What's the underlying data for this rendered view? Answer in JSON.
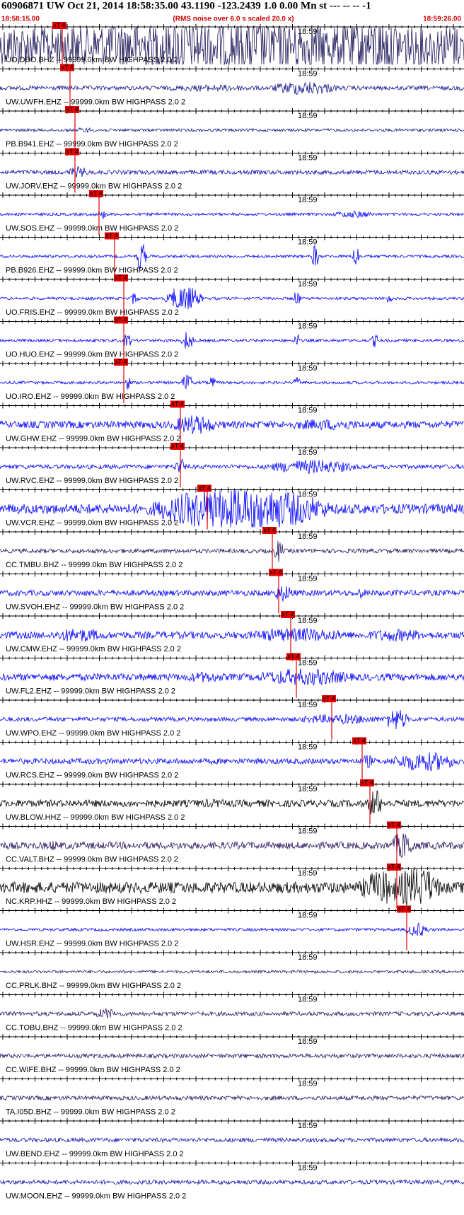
{
  "header": {
    "title": "60906871 UW Oct 21, 2014 18:58:35.00   43.1190 -123.2439  1.0 0.00 Mn st --- -- --  -1",
    "start_time": "18:58:15.00",
    "note": "(RMS noise over 6.0 s scaled 20.0 x)",
    "end_time": "18:59:26.00"
  },
  "traces": [
    {
      "label": "UO.DBO.BHZ --  99999.0km BW  HIGHPASS  2.0  2",
      "time_mark": "18:59",
      "pick": "xT 4",
      "color": "#1c1658"
    },
    {
      "label": "UW.UWFH.EHZ --  99999.0km BW  HIGHPASS  2.0  2",
      "time_mark": "18:59",
      "pick": "xT 4",
      "color": "#14148c"
    },
    {
      "label": "PB.B941.EHZ --  99999.0km BW  HIGHPASS  2.0  2",
      "time_mark": "18:59",
      "pick": "xT 4",
      "color": "#14148c"
    },
    {
      "label": "UW.JORV.EHZ --  99999.0km BW  HIGHPASS  2.0  2",
      "time_mark": "18:59",
      "pick": "xT 4",
      "color": "#1010b0"
    },
    {
      "label": "UW.SOS.EHZ --  99999.0km BW  HIGHPASS  2.0  2",
      "time_mark": "18:59",
      "pick": "xT 4",
      "color": "#0000ff"
    },
    {
      "label": "PB.B926.EHZ --  99999.0km BW  HIGHPASS  2.0  2",
      "time_mark": "18:59",
      "pick": "xT 4",
      "color": "#0000ff"
    },
    {
      "label": "UO.FRIS.EHZ --  99999.0km BW  HIGHPASS  2.0  2",
      "time_mark": "18:59",
      "pick": "xT 4",
      "color": "#0000ff"
    },
    {
      "label": "UO.HUO.EHZ --  99999.0km BW  HIGHPASS  2.0  2",
      "time_mark": "18:59",
      "pick": "xT 4",
      "color": "#0000ff"
    },
    {
      "label": "UO.IRO.EHZ --  99999.0km BW  HIGHPASS  2.0  2",
      "time_mark": "18:59",
      "pick": "xT 4",
      "color": "#0000ff"
    },
    {
      "label": "UW.GHW.EHZ --  99999.0km BW  HIGHPASS  2.0  2",
      "time_mark": "18:59",
      "pick": "xT 4",
      "color": "#0000ff"
    },
    {
      "label": "UW.RVC.EHZ --  99999.0km BW  HIGHPASS  2.0  2",
      "time_mark": "18:59",
      "pick": "xT 4",
      "color": "#0000ff"
    },
    {
      "label": "UW.VCR.EHZ --  99999.0km BW  HIGHPASS  2.0  2",
      "time_mark": "18:59",
      "pick": "xT 4",
      "color": "#0000ff"
    },
    {
      "label": "CC.TMBU.BHZ --  99999.0km BW  HIGHPASS  2.0  2",
      "time_mark": "18:59",
      "pick": "xT 4",
      "color": "#1c1658"
    },
    {
      "label": "UW.SVOH.EHZ --  99999.0km BW  HIGHPASS  2.0  2",
      "time_mark": "18:59",
      "pick": "xT 4",
      "color": "#0000ff"
    },
    {
      "label": "UW.CMW.EHZ --  99999.0km BW  HIGHPASS  2.0  2",
      "time_mark": "18:59",
      "pick": "xT 4",
      "color": "#0000ff"
    },
    {
      "label": "UW.FL2.EHZ --  99999.0km BW  HIGHPASS  2.0  2",
      "time_mark": "18:59",
      "pick": "xT 4",
      "color": "#0000ff"
    },
    {
      "label": "UW.WPO.EHZ --  99999.0km BW  HIGHPASS  2.0  2",
      "time_mark": "18:59",
      "pick": "xT 4",
      "color": "#0000ff"
    },
    {
      "label": "UW.RCS.EHZ --  99999.0km BW  HIGHPASS  2.0  2",
      "time_mark": "18:59",
      "pick": "xT 4",
      "color": "#0000ff"
    },
    {
      "label": "UW.BLOW.HHZ --  99999.0km BW  HIGHPASS  2.0  2",
      "time_mark": "18:59",
      "pick": "xT 4",
      "color": "#000000"
    },
    {
      "label": "CC.VALT.BHZ --  99999.0km BW  HIGHPASS  2.0  2",
      "time_mark": "18:59",
      "pick": "xT 4",
      "color": "#2a1660"
    },
    {
      "label": "NC.KRP.HHZ --  99999.0km BW  HIGHPASS  2.0  2",
      "time_mark": "18:59",
      "pick": "xT 4",
      "color": "#000000"
    },
    {
      "label": "UW.HSR.EHZ --  99999.0km BW  HIGHPASS  2.0  2",
      "time_mark": "18:59",
      "pick": "xT 4",
      "color": "#0000ff"
    },
    {
      "label": "CC.PRLK.BHZ --  99999.0km BW  HIGHPASS  2.0  2",
      "time_mark": "18:59",
      "color": "#2a1660"
    },
    {
      "label": "CC.TOBU.BHZ --  99999.0km BW  HIGHPASS  2.0  2",
      "time_mark": "18:59",
      "color": "#2a1660"
    },
    {
      "label": "CC.WIFE.BHZ --  99999.0km BW  HIGHPASS  2.0  2",
      "time_mark": "18:59",
      "color": "#2a1660"
    },
    {
      "label": "TA.I05D.BHZ --  99999.0km BW  HIGHPASS  2.0  2",
      "time_mark": "18:59",
      "color": "#2a1660"
    },
    {
      "label": "UW.BEND.EHZ --  99999.0km BW  HIGHPASS  2.0  2",
      "time_mark": "18:59",
      "color": "#1010b0"
    },
    {
      "label": "UW.MOON.EHZ --  99999.0km BW  HIGHPASS  2.0  2",
      "time_mark": "18:59",
      "color": "#1010b0"
    }
  ]
}
